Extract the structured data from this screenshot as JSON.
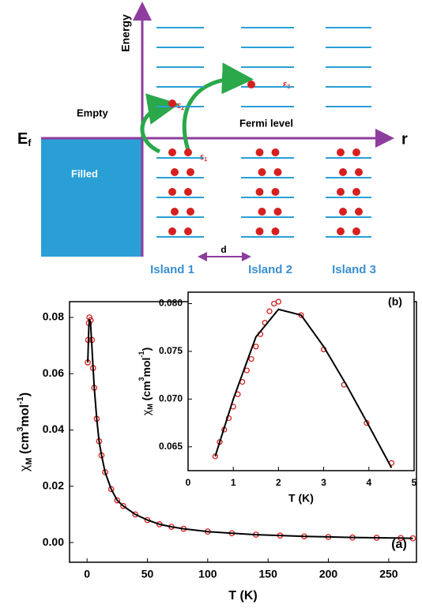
{
  "diagram": {
    "energy_label": "Energy",
    "r_label": "r",
    "ef_label": {
      "symbol": "E",
      "sub": "f"
    },
    "empty_label": "Empty",
    "filled_label": "Filled",
    "fermi_label": "Fermi level",
    "epsilons": [
      {
        "symbol": "ε",
        "sub": "1"
      },
      {
        "symbol": "ε",
        "sub": "2"
      },
      {
        "symbol": "ε",
        "sub": "3"
      }
    ],
    "d_label": "d",
    "islands": [
      "Island 1",
      "Island 2",
      "Island 3"
    ]
  },
  "chart_data": [
    {
      "type": "scatter",
      "panel_label": "(a)",
      "x_label": "T (K)",
      "y_label": [
        "χ",
        "M",
        " (cm",
        "3",
        "mol",
        "-1",
        ")"
      ],
      "xlim": [
        -14.5,
        273
      ],
      "xticks": [
        0,
        50,
        100,
        150,
        200,
        250
      ],
      "ylim": [
        -0.007,
        0.0856
      ],
      "yticks": [
        {
          "value": 0,
          "label": "0.00"
        },
        {
          "value": 0.02,
          "label": "0.02"
        },
        {
          "value": 0.04,
          "label": "0.04"
        },
        {
          "value": 0.06,
          "label": "0.06"
        },
        {
          "value": 0.08,
          "label": "0.08"
        }
      ],
      "series": [
        {
          "type": "scatter",
          "color": "#d62020",
          "x": [
            0.6,
            1,
            1.5,
            2,
            3,
            4,
            5,
            6,
            8,
            10,
            12,
            15,
            20,
            25,
            30,
            40,
            50,
            60,
            70,
            80,
            100,
            120,
            140,
            160,
            180,
            200,
            220,
            240,
            260,
            270
          ],
          "values": [
            0.064,
            0.072,
            0.078,
            0.08,
            0.079,
            0.072,
            0.062,
            0.055,
            0.044,
            0.036,
            0.031,
            0.025,
            0.019,
            0.015,
            0.013,
            0.01,
            0.008,
            0.0065,
            0.0056,
            0.0049,
            0.0039,
            0.0033,
            0.0028,
            0.0025,
            0.0022,
            0.002,
            0.0018,
            0.0017,
            0.0016,
            0.0015
          ]
        },
        {
          "type": "line",
          "color": "#000000",
          "x": [
            0.6,
            1,
            1.5,
            2,
            3,
            4,
            5,
            6,
            8,
            10,
            12,
            15,
            20,
            25,
            30,
            40,
            50,
            60,
            70,
            80,
            100,
            120,
            140,
            160,
            180,
            200,
            220,
            240,
            260,
            270
          ],
          "values": [
            0.064,
            0.07,
            0.0765,
            0.0794,
            0.0775,
            0.07,
            0.062,
            0.055,
            0.044,
            0.036,
            0.031,
            0.025,
            0.019,
            0.015,
            0.013,
            0.01,
            0.008,
            0.0065,
            0.0056,
            0.0049,
            0.0039,
            0.0033,
            0.0028,
            0.0025,
            0.0022,
            0.002,
            0.0018,
            0.0017,
            0.0016,
            0.0015
          ]
        }
      ]
    },
    {
      "type": "scatter",
      "panel_label": "(b)",
      "x_label": "T (K)",
      "y_label": [
        "χ",
        "M",
        " (cm",
        "3",
        "mol",
        "-1",
        ")"
      ],
      "xlim": [
        0,
        5
      ],
      "xticks": [
        0,
        1,
        2,
        3,
        4,
        5
      ],
      "ylim": [
        0.0625,
        0.0812
      ],
      "yticks": [
        0.065,
        {
          "value": 0.07,
          "label": "0.070"
        },
        0.075,
        {
          "value": 0.08,
          "label": "0.080"
        }
      ],
      "series": [
        {
          "type": "scatter",
          "color": "#d62020",
          "x": [
            0.6,
            0.7,
            0.8,
            0.9,
            1.0,
            1.1,
            1.2,
            1.3,
            1.4,
            1.5,
            1.6,
            1.7,
            1.8,
            1.9,
            2.0,
            2.5,
            3.0,
            3.45,
            3.95,
            4.5
          ],
          "values": [
            0.064,
            0.0655,
            0.0668,
            0.068,
            0.0692,
            0.0705,
            0.0718,
            0.073,
            0.0742,
            0.0755,
            0.0768,
            0.078,
            0.0792,
            0.08,
            0.0802,
            0.0788,
            0.0752,
            0.0715,
            0.0675,
            0.0633
          ]
        },
        {
          "type": "line",
          "color": "#000000",
          "x": [
            0.6,
            1,
            1.5,
            2,
            2.5,
            3,
            3.5,
            4,
            4.5
          ],
          "values": [
            0.064,
            0.07,
            0.0765,
            0.0794,
            0.0788,
            0.0755,
            0.0715,
            0.0672,
            0.0628
          ]
        }
      ]
    }
  ]
}
